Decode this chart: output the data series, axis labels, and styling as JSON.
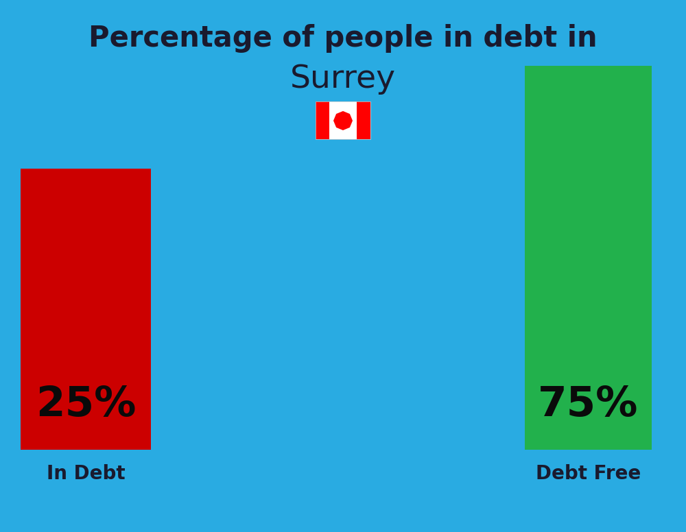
{
  "title_line1": "Percentage of people in debt in",
  "title_line2": "Surrey",
  "background_color": "#29ABE2",
  "bar1_value": 25,
  "bar1_label": "25%",
  "bar1_color": "#CC0000",
  "bar1_caption": "In Debt",
  "bar2_value": 75,
  "bar2_label": "75%",
  "bar2_color": "#22B14C",
  "bar2_caption": "Debt Free",
  "title_fontsize": 30,
  "subtitle_fontsize": 34,
  "bar_label_fontsize": 44,
  "caption_fontsize": 20,
  "title_color": "#1a1a2e",
  "caption_color": "#1a1a2e",
  "bar_label_color": "#0a0a0a",
  "flag_red": "#FF0000",
  "flag_white": "#FFFFFF"
}
